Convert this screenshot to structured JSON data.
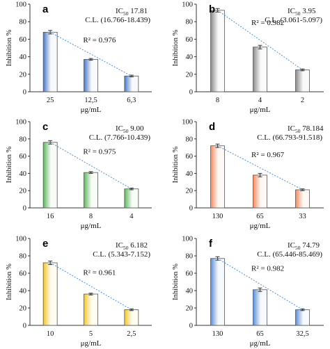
{
  "chart_data": [
    {
      "type": "bar",
      "panel_label": "a",
      "categories": [
        "25",
        "12,5",
        "6,3"
      ],
      "values": [
        68,
        37,
        18
      ],
      "errors": [
        2,
        1,
        1
      ],
      "ylabel": "Inhibition %",
      "xlabel": "",
      "ylim": [
        0,
        100
      ],
      "yticks": [
        0,
        20,
        40,
        60,
        80,
        100
      ],
      "ic50_value": "17.81",
      "cl_text": "C.L. (16.766-18.439)",
      "r2_text": "R² = 0.976",
      "bar_colors": [
        "#4a78c8",
        "#f7f9fd"
      ],
      "trendline_color": "#4e8fd6"
    },
    {
      "type": "bar",
      "panel_label": "b",
      "categories": [
        "8",
        "4",
        "2"
      ],
      "values": [
        93,
        51,
        25
      ],
      "errors": [
        2,
        2,
        1
      ],
      "ylabel": "Inhibition %",
      "xlabel": "",
      "ylim": [
        0,
        100
      ],
      "yticks": [
        0,
        20,
        40,
        60,
        80,
        100
      ],
      "ic50_value": "3.95",
      "cl_text": "C.L. (3.061-5.097)",
      "r2_text": "R² = 0.982",
      "bar_colors": [
        "#8a8a8a",
        "#fafafa"
      ],
      "trendline_color": "#4e8fd6"
    },
    {
      "type": "bar",
      "panel_label": "c",
      "categories": [
        "16",
        "8",
        "4"
      ],
      "values": [
        76,
        41,
        22
      ],
      "errors": [
        2,
        1,
        1
      ],
      "ylabel": "Inhibition %",
      "xlabel": "",
      "ylim": [
        0,
        100
      ],
      "yticks": [
        0,
        20,
        40,
        60,
        80,
        100
      ],
      "ic50_value": "9.00",
      "cl_text": "C.L. (7.766-10.439)",
      "r2_text": "R² = 0.975",
      "bar_colors": [
        "#5cb85c",
        "#f7fcf6"
      ],
      "trendline_color": "#4e8fd6"
    },
    {
      "type": "bar",
      "panel_label": "d",
      "categories": [
        "130",
        "65",
        "33"
      ],
      "values": [
        72,
        38,
        21
      ],
      "errors": [
        2,
        2,
        1
      ],
      "ylabel": "Inhibition %",
      "xlabel": "",
      "ylim": [
        0,
        100
      ],
      "yticks": [
        0,
        20,
        40,
        60,
        80,
        100
      ],
      "ic50_value": "78.184",
      "cl_text": "C.L. (66.793-91.518)",
      "r2_text": "R² = 0.967",
      "bar_colors": [
        "#f08c60",
        "#fff8f4"
      ],
      "trendline_color": "#4e8fd6"
    },
    {
      "type": "bar",
      "panel_label": "e",
      "categories": [
        "10",
        "5",
        "2,5"
      ],
      "values": [
        72,
        36,
        18
      ],
      "errors": [
        2,
        1,
        1
      ],
      "ylabel": "Inhibition %",
      "xlabel": "",
      "ylim": [
        0,
        100
      ],
      "yticks": [
        0,
        20,
        40,
        60,
        80,
        100
      ],
      "ic50_value": "6.182",
      "cl_text": "C.L. (5.343-7.152)",
      "r2_text": "R² = 0.961",
      "bar_colors": [
        "#f3c62a",
        "#fffcf0"
      ],
      "trendline_color": "#4e8fd6"
    },
    {
      "type": "bar",
      "panel_label": "f",
      "categories": [
        "130",
        "65",
        "32,5"
      ],
      "values": [
        77,
        41,
        18
      ],
      "errors": [
        2,
        2,
        1
      ],
      "ylabel": "Inhibition %",
      "xlabel": "",
      "ylim": [
        0,
        100
      ],
      "yticks": [
        0,
        20,
        40,
        60,
        80,
        100
      ],
      "ic50_value": "74.79",
      "cl_text": "C.L. (65.446-85.469)",
      "r2_text": "R² = 0.982",
      "bar_colors": [
        "#5b8fd6",
        "#f6f9fe"
      ],
      "trendline_color": "#4e8fd6"
    }
  ],
  "figure": {
    "x_unit_label": "μg/mL",
    "ic50_prefix": "IC",
    "ic50_subscript": "50"
  }
}
